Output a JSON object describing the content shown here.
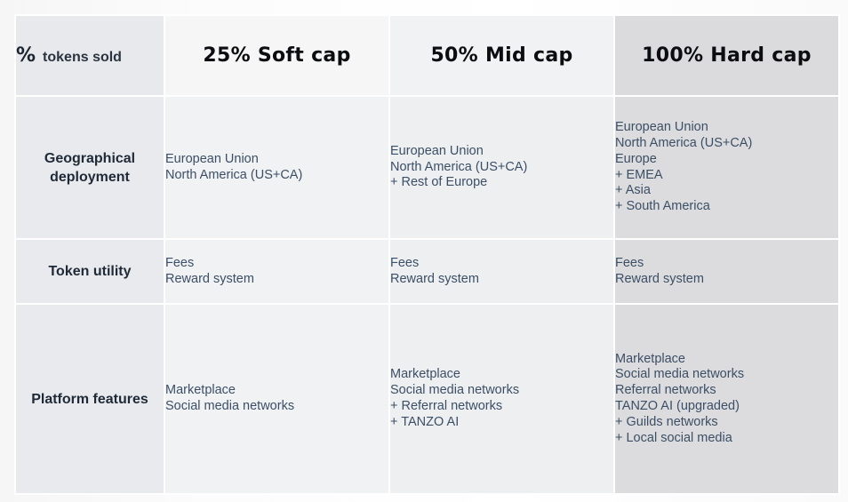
{
  "header": {
    "label_percent": "%",
    "label_text": "tokens sold",
    "caps": [
      "25% Soft cap",
      "50% Mid cap",
      "100% Hard cap"
    ]
  },
  "rows": [
    {
      "label_lines": [
        "Geographical",
        "deployment"
      ],
      "cells": [
        [
          "European Union",
          "North America (US+CA)"
        ],
        [
          "European Union",
          "North America (US+CA)",
          "+ Rest of Europe"
        ],
        [
          "European Union",
          "North America (US+CA)",
          "Europe",
          "+ EMEA",
          "+ Asia",
          "+ South America"
        ]
      ]
    },
    {
      "label_lines": [
        "Token utility"
      ],
      "cells": [
        [
          "Fees",
          "Reward system"
        ],
        [
          "Fees",
          "Reward system"
        ],
        [
          "Fees",
          "Reward system"
        ]
      ]
    },
    {
      "label_lines": [
        "Platform features"
      ],
      "cells": [
        [
          "Marketplace",
          "Social media networks"
        ],
        [
          "Marketplace",
          "Social media networks",
          "+ Referral networks",
          "+ TANZO AI"
        ],
        [
          "Marketplace",
          "Social media networks",
          "Referral networks",
          "TANZO AI (upgraded)",
          "+ Guilds networks",
          "+ Local social media"
        ]
      ]
    }
  ]
}
